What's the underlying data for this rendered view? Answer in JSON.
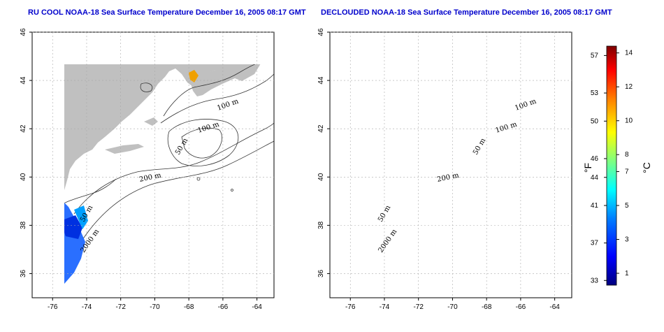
{
  "panels": [
    {
      "id": "left",
      "title": "RU COOL NOAA-18 Sea Surface Temperature December 16, 2005 08:17 GMT",
      "contour_labels": [
        "100 m",
        "100 m",
        "50 m",
        "200 m",
        "50 m",
        "2000 m"
      ]
    },
    {
      "id": "right",
      "title": "DECLOUDED NOAA-18 Sea Surface Temperature December 16, 2005 08:17 GMT",
      "contour_labels": [
        "100 m",
        "100 m",
        "50 m",
        "200 m",
        "50 m",
        "2000 m"
      ]
    }
  ],
  "axes": {
    "lon_ticks": [
      "-76",
      "-74",
      "-72",
      "-70",
      "-68",
      "-66",
      "-64"
    ],
    "lat_ticks": [
      "46",
      "44",
      "42",
      "40",
      "38",
      "36"
    ],
    "lon_range": [
      -77.2,
      -63
    ],
    "lat_range": [
      35,
      46
    ]
  },
  "colorbar": {
    "fahrenheit_ticks": [
      "57",
      "53",
      "50",
      "46",
      "44",
      "41",
      "37",
      "33"
    ],
    "celsius_ticks": [
      "14",
      "12",
      "10",
      "8",
      "7",
      "5",
      "3",
      "1"
    ],
    "fahrenheit_unit": "°F",
    "celsius_unit": "°C",
    "colors": [
      "#00007f",
      "#0000ff",
      "#007fff",
      "#00ffff",
      "#7fff7f",
      "#ffff00",
      "#ff7f00",
      "#ff0000",
      "#7f0000"
    ]
  },
  "colors": {
    "land": "#c0c0c0",
    "grid": "#aaaaaa",
    "title": "#0000cc"
  }
}
